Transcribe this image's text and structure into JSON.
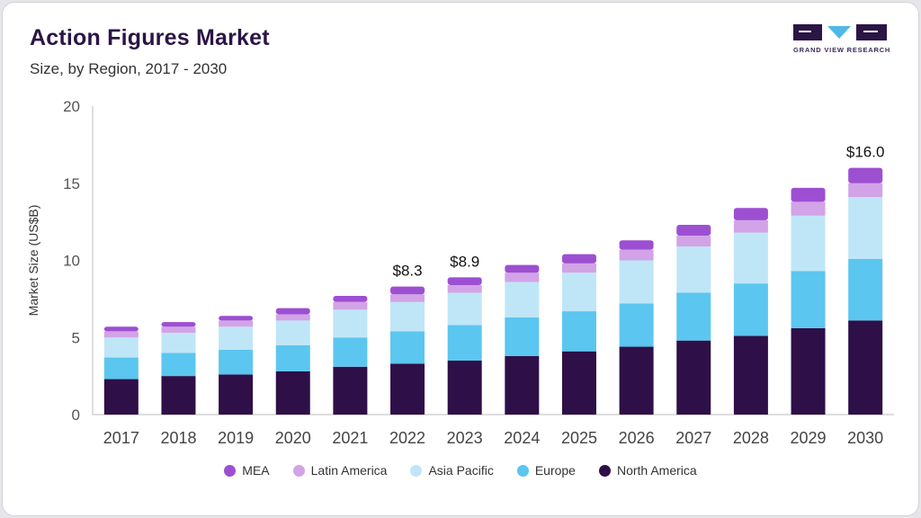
{
  "header": {
    "title": "Action Figures Market",
    "subtitle": "Size, by Region, 2017 - 2030"
  },
  "logo": {
    "text": "GRAND VIEW RESEARCH",
    "color": "#2b1545",
    "accent": "#4fb8e8"
  },
  "chart_data": {
    "type": "bar",
    "stacked": true,
    "categories": [
      "2017",
      "2018",
      "2019",
      "2020",
      "2021",
      "2022",
      "2023",
      "2024",
      "2025",
      "2026",
      "2027",
      "2028",
      "2029",
      "2030"
    ],
    "ylabel": "Market Size (US$B)",
    "ylim": [
      0,
      20
    ],
    "yticks": [
      0,
      5,
      10,
      15,
      20
    ],
    "grid": false,
    "legend_position": "bottom",
    "series": [
      {
        "name": "North America",
        "color": "#2e0f47",
        "values": [
          2.3,
          2.5,
          2.6,
          2.8,
          3.1,
          3.3,
          3.5,
          3.8,
          4.1,
          4.4,
          4.8,
          5.1,
          5.6,
          6.1
        ]
      },
      {
        "name": "Europe",
        "color": "#5bc6ef",
        "values": [
          1.4,
          1.5,
          1.6,
          1.7,
          1.9,
          2.1,
          2.3,
          2.5,
          2.6,
          2.8,
          3.1,
          3.4,
          3.7,
          4.0
        ]
      },
      {
        "name": "Asia Pacific",
        "color": "#bfe6f7",
        "values": [
          1.3,
          1.3,
          1.5,
          1.6,
          1.8,
          1.9,
          2.1,
          2.3,
          2.5,
          2.8,
          3.0,
          3.3,
          3.6,
          4.0
        ]
      },
      {
        "name": "Latin America",
        "color": "#d2a3e6",
        "values": [
          0.4,
          0.4,
          0.4,
          0.4,
          0.5,
          0.5,
          0.5,
          0.6,
          0.6,
          0.7,
          0.7,
          0.8,
          0.9,
          0.9
        ]
      },
      {
        "name": "MEA",
        "color": "#9d4fd2",
        "values": [
          0.3,
          0.3,
          0.3,
          0.4,
          0.4,
          0.5,
          0.5,
          0.5,
          0.6,
          0.6,
          0.7,
          0.8,
          0.9,
          1.0
        ]
      }
    ],
    "annotations": [
      {
        "category": "2022",
        "label": "$8.3",
        "value": 8.3
      },
      {
        "category": "2023",
        "label": "$8.9",
        "value": 8.9
      },
      {
        "category": "2030",
        "label": "$16.0",
        "value": 16.0
      }
    ],
    "legend_order": [
      "MEA",
      "Latin America",
      "Asia Pacific",
      "Europe",
      "North America"
    ]
  }
}
